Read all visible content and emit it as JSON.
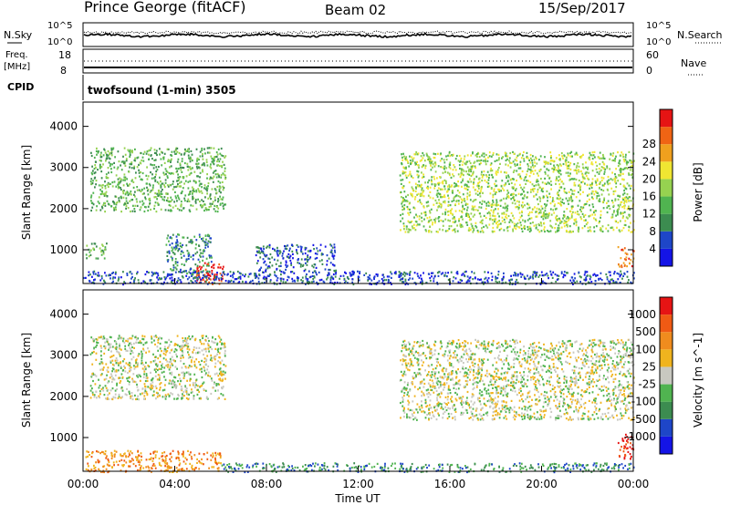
{
  "header": {
    "station": "Prince George (fitACF)",
    "beam": "Beam 02",
    "date": "15/Sep/2017"
  },
  "strip": {
    "nsky_label": "N.Sky",
    "nsky_ticks": [
      "10^5",
      "10^0"
    ],
    "nsearch_label": "N.Search",
    "nsearch_ticks": [
      "10^5",
      "10^0"
    ],
    "freq_label_line1": "Freq.",
    "freq_label_line2": "[MHz]",
    "freq_ticks": [
      "18",
      "8"
    ],
    "nave_label": "Nave",
    "nave_ticks": [
      "60",
      "0"
    ],
    "cpid_label": "CPID",
    "cpid_text": "twofsound (1-min) 3505"
  },
  "colors": {
    "power_scale": [
      "#1414e6",
      "#1e46c8",
      "#3c8c50",
      "#50b450",
      "#96d250",
      "#f0e632",
      "#f0a01e",
      "#f06414",
      "#e61414"
    ],
    "velocity_scale": [
      "#1414e6",
      "#1e46c8",
      "#3c8c50",
      "#50b450",
      "#c8c8c0",
      "#f0b41e",
      "#f08c1e",
      "#f05a14",
      "#e61414"
    ],
    "ground_scatter": "#c8c8c0"
  },
  "chart_data": [
    {
      "type": "heatmap",
      "name": "power",
      "ylabel": "Slant Range [km]",
      "xlabel": "",
      "x_ticks": [
        "00:00",
        "04:00",
        "08:00",
        "12:00",
        "16:00",
        "20:00",
        "00:00"
      ],
      "xlim_hours": [
        0,
        24
      ],
      "y_ticks": [
        1000,
        2000,
        3000,
        4000
      ],
      "ylim": [
        180,
        4590
      ],
      "colorbar_label": "Power [dB]",
      "colorbar_ticks": [
        4,
        8,
        12,
        16,
        20,
        24,
        28
      ],
      "regions": [
        {
          "t0": 0.3,
          "t1": 6.2,
          "r0": 1950,
          "r1": 3500,
          "level": 4
        },
        {
          "t0": 13.8,
          "t1": 24.0,
          "r0": 1450,
          "r1": 3400,
          "level": 5
        },
        {
          "t0": 0.1,
          "t1": 1.0,
          "r0": 800,
          "r1": 1200,
          "level": 4
        },
        {
          "t0": 3.6,
          "t1": 5.6,
          "r0": 400,
          "r1": 1400,
          "level": 3
        },
        {
          "t0": 4.9,
          "t1": 6.1,
          "r0": 180,
          "r1": 700,
          "level": 9
        },
        {
          "t0": 0.0,
          "t1": 24.0,
          "r0": 180,
          "r1": 500,
          "level": 2
        },
        {
          "t0": 7.5,
          "t1": 11.0,
          "r0": 500,
          "r1": 1150,
          "level": 2
        },
        {
          "t0": 23.3,
          "t1": 24.0,
          "r0": 600,
          "r1": 1100,
          "level": 8
        }
      ]
    },
    {
      "type": "heatmap",
      "name": "velocity",
      "ylabel": "Slant Range [km]",
      "xlabel": "Time UT",
      "x_ticks": [
        "00:00",
        "04:00",
        "08:00",
        "12:00",
        "16:00",
        "20:00",
        "00:00"
      ],
      "xlim_hours": [
        0,
        24
      ],
      "y_ticks": [
        1000,
        2000,
        3000,
        4000
      ],
      "ylim": [
        180,
        4590
      ],
      "colorbar_label": "Velocity [m s^-1]",
      "colorbar_ticks": [
        "1000",
        "500",
        "100",
        "25",
        "-25",
        "-100",
        "-500",
        "-1000"
      ],
      "regions": [
        {
          "t0": 0.3,
          "t1": 6.2,
          "r0": 1950,
          "r1": 3500,
          "level": 5
        },
        {
          "t0": 13.8,
          "t1": 24.0,
          "r0": 1450,
          "r1": 3400,
          "level": 5
        },
        {
          "t0": 0.1,
          "t1": 6.0,
          "r0": 180,
          "r1": 700,
          "level": 7
        },
        {
          "t0": 6.0,
          "t1": 24.0,
          "r0": 180,
          "r1": 400,
          "level": 3
        },
        {
          "t0": 23.3,
          "t1": 24.0,
          "r0": 500,
          "r1": 1100,
          "level": 9
        }
      ]
    }
  ]
}
